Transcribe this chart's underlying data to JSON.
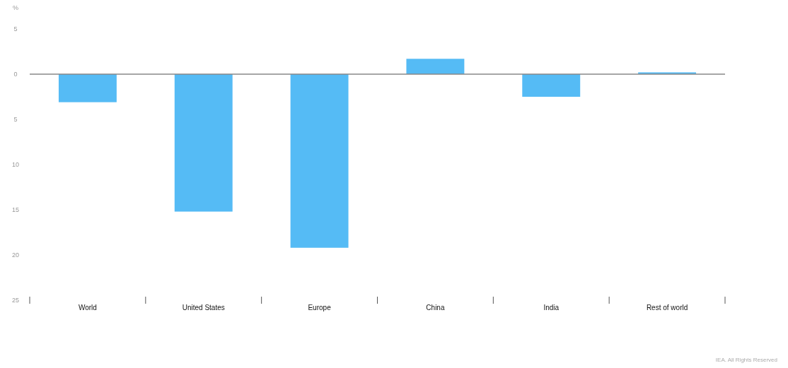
{
  "chart_data": {
    "type": "bar",
    "ylabel": "%",
    "categories": [
      "World",
      "United States",
      "Europe",
      "China",
      "India",
      "Rest of world"
    ],
    "values": [
      -3.1,
      -15.2,
      -19.2,
      1.7,
      -2.5,
      0.2
    ],
    "color": "#55bbf5",
    "ylim": [
      -25,
      5
    ],
    "yticks": [
      {
        "value": 5,
        "label": "5"
      },
      0,
      {
        "value": -5,
        "label": "5"
      },
      {
        "value": -10,
        "label": "10"
      },
      {
        "value": -15,
        "label": "15"
      },
      {
        "value": -20,
        "label": "20"
      },
      {
        "value": -25,
        "label": "25"
      }
    ],
    "annotations": [
      "IEA. All Rights Reserved"
    ]
  }
}
